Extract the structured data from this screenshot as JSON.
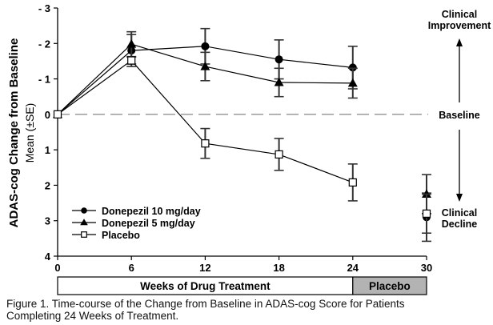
{
  "chart_data": {
    "type": "line",
    "title": "",
    "ylabel": "ADAS-cog Change from Baseline",
    "ylabel_sub": "Mean (±SE)",
    "xlabel": "Weeks of Drug Treatment",
    "x_ticks": [
      0,
      6,
      12,
      18,
      24,
      30
    ],
    "y_ticks": [
      {
        "value": -3,
        "label": "- 3"
      },
      {
        "value": -2,
        "label": "- 2"
      },
      {
        "value": -1,
        "label": "- 1"
      },
      {
        "value": 0,
        "label": "0"
      },
      {
        "value": 1,
        "label": "1"
      },
      {
        "value": 2,
        "label": "2"
      },
      {
        "value": 3,
        "label": "3"
      },
      {
        "value": 4,
        "label": "4"
      }
    ],
    "xlim": [
      0,
      30
    ],
    "ylim": [
      -3,
      4
    ],
    "y_inverted": true,
    "baseline": {
      "value": 0,
      "label": "Baseline",
      "style": "dashed"
    },
    "phase_bar": [
      {
        "label": "Weeks of Drug Treatment",
        "from": 0,
        "to": 24,
        "color": "#ffffff"
      },
      {
        "label": "Placebo",
        "from": 24,
        "to": 30,
        "color": "#b3b3b3"
      }
    ],
    "annotations": {
      "improvement": "Clinical Improvement",
      "improvement_lines": [
        "Clinical",
        "Improvement"
      ],
      "decline_lines": [
        "Clinical",
        "Decline"
      ]
    },
    "legend_placement": "bottom-left",
    "series": [
      {
        "name": "Donepezil 10 mg/day",
        "marker": "circle-filled",
        "x": [
          0,
          6,
          12,
          18,
          24,
          30
        ],
        "y": [
          0,
          -1.8,
          -1.92,
          -1.55,
          -1.32,
          2.9
        ],
        "se": [
          0,
          0.45,
          0.5,
          0.55,
          0.6,
          0.68
        ],
        "connect_last": false
      },
      {
        "name": "Donepezil 5 mg/day",
        "marker": "triangle-filled",
        "x": [
          0,
          6,
          12,
          18,
          24,
          30
        ],
        "y": [
          0,
          -1.98,
          -1.35,
          -0.9,
          -0.88,
          2.25
        ],
        "se": [
          0,
          0.35,
          0.4,
          0.4,
          0.42,
          0.55
        ],
        "connect_last": false
      },
      {
        "name": "Placebo",
        "marker": "square-open",
        "x": [
          0,
          6,
          12,
          18,
          24,
          30
        ],
        "y": [
          0,
          -1.52,
          0.82,
          1.13,
          1.92,
          2.8
        ],
        "se": [
          0,
          0.1,
          0.42,
          0.45,
          0.52,
          0.55
        ],
        "connect_last": false
      }
    ]
  },
  "caption": {
    "line1": "Figure 1. Time-course of the Change from Baseline in ADAS-cog Score for Patients",
    "line2": "Completing 24 Weeks of Treatment."
  }
}
